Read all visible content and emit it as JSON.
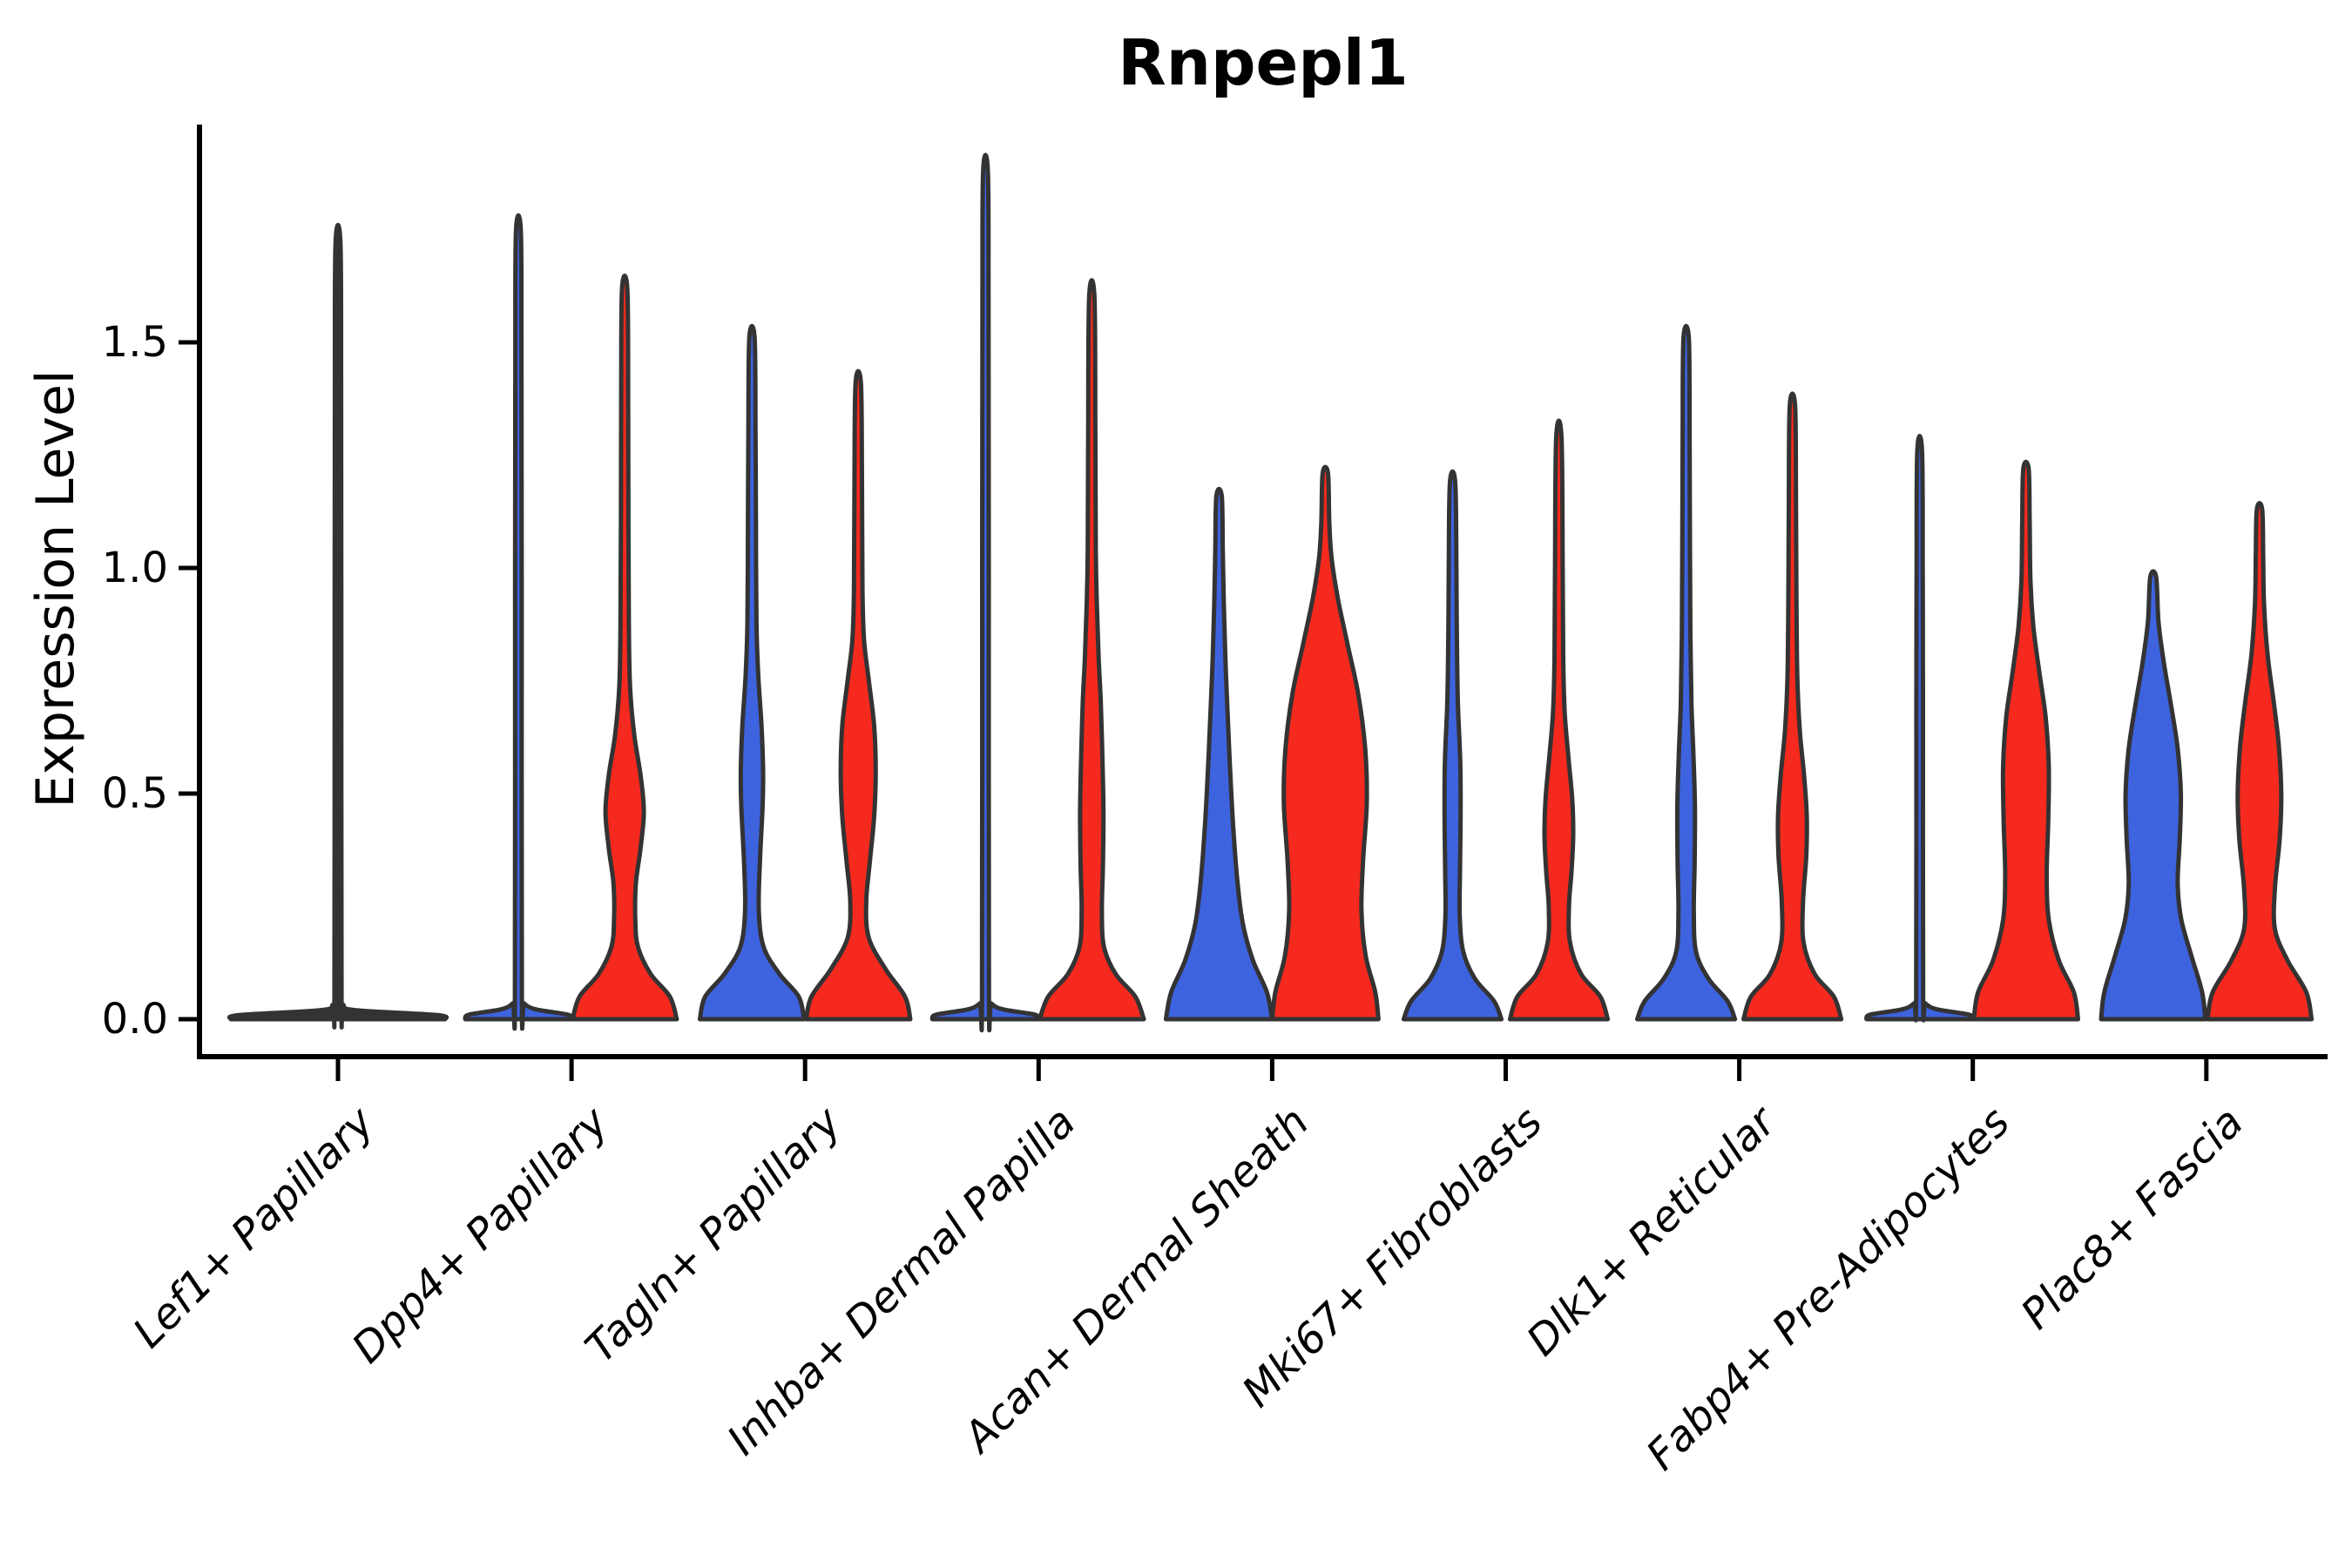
{
  "title": "Rnpepl1",
  "ylabel": "Expression Level",
  "colors": {
    "blue": "#3E63DF",
    "red": "#F6291E",
    "outline": "#333333",
    "axis": "#000000",
    "text": "#000000",
    "background": "#ffffff"
  },
  "axes": {
    "y_tick_labels": [
      "0.0",
      "0.5",
      "1.0",
      "1.5"
    ],
    "x_tick_labels": [
      "Lef1+ Papillary",
      "Dpp4+ Papillary",
      "Tagln+ Papillary",
      "Inhba+ Dermal Papilla",
      "Acan+ Dermal Sheath",
      "Mki67+ Fibroblasts",
      "Dlk1+ Reticular",
      "Fabp4+ Pre-Adipocytes",
      "Plac8+ Fascia"
    ]
  },
  "chart_data": {
    "type": "violin",
    "title": "Rnpepl1",
    "xlabel": "",
    "ylabel": "Expression Level",
    "yticks": [
      0.0,
      0.5,
      1.0,
      1.5
    ],
    "ylim": [
      -0.09,
      1.98
    ],
    "grid": false,
    "legend": "none shown (split violins: blue = condition 1, red = condition 2)",
    "categories": [
      "Lef1+ Papillary",
      "Dpp4+ Papillary",
      "Tagln+ Papillary",
      "Inhba+ Dermal Papilla",
      "Acan+ Dermal Sheath",
      "Mki67+ Fibroblasts",
      "Dlk1+ Reticular",
      "Fabp4+ Pre-Adipocytes",
      "Plac8+ Fascia"
    ],
    "violins": [
      {
        "category_index": 0,
        "category": "Lef1+ Papillary",
        "side": "full",
        "group": "unknown",
        "color": null,
        "collapsed": true,
        "max_expression": 1.72,
        "width_profile": [
          [
            0,
            1.0
          ],
          [
            0.009,
            0.93
          ],
          [
            0.02,
            0.16
          ],
          [
            0.032,
            0.05
          ],
          [
            0.05,
            0.033
          ],
          [
            0.9,
            0.031
          ],
          [
            1.4,
            0.029
          ],
          [
            1.72,
            0.023
          ]
        ]
      },
      {
        "category_index": 1,
        "category": "Dpp4+ Papillary",
        "side": "left",
        "group": "blue",
        "color": "blue",
        "collapsed": true,
        "max_expression": 1.75,
        "width_profile": [
          [
            0,
            1.0
          ],
          [
            0.01,
            0.93
          ],
          [
            0.022,
            0.32
          ],
          [
            0.035,
            0.11
          ],
          [
            0.05,
            0.066
          ],
          [
            0.95,
            0.062
          ],
          [
            1.5,
            0.058
          ],
          [
            1.75,
            0.045
          ]
        ]
      },
      {
        "category_index": 1,
        "category": "Dpp4+ Papillary",
        "side": "right",
        "group": "red",
        "color": "red",
        "collapsed": false,
        "max_expression": 1.62,
        "width_profile": [
          [
            0,
            0.98
          ],
          [
            0.05,
            0.85
          ],
          [
            0.1,
            0.49
          ],
          [
            0.16,
            0.25
          ],
          [
            0.22,
            0.2
          ],
          [
            0.3,
            0.21
          ],
          [
            0.38,
            0.3
          ],
          [
            0.46,
            0.36
          ],
          [
            0.54,
            0.3
          ],
          [
            0.63,
            0.18
          ],
          [
            0.74,
            0.1
          ],
          [
            0.88,
            0.078
          ],
          [
            1.1,
            0.07
          ],
          [
            1.4,
            0.065
          ],
          [
            1.62,
            0.05
          ]
        ]
      },
      {
        "category_index": 2,
        "category": "Tagln+ Papillary",
        "side": "left",
        "group": "blue",
        "color": "blue",
        "collapsed": false,
        "max_expression": 1.51,
        "width_profile": [
          [
            0,
            0.98
          ],
          [
            0.05,
            0.88
          ],
          [
            0.1,
            0.52
          ],
          [
            0.16,
            0.22
          ],
          [
            0.24,
            0.13
          ],
          [
            0.35,
            0.15
          ],
          [
            0.47,
            0.2
          ],
          [
            0.55,
            0.21
          ],
          [
            0.65,
            0.18
          ],
          [
            0.76,
            0.12
          ],
          [
            0.88,
            0.085
          ],
          [
            1.1,
            0.075
          ],
          [
            1.3,
            0.068
          ],
          [
            1.51,
            0.05
          ]
        ]
      },
      {
        "category_index": 2,
        "category": "Tagln+ Papillary",
        "side": "right",
        "group": "red",
        "color": "red",
        "collapsed": false,
        "max_expression": 1.41,
        "width_profile": [
          [
            0,
            0.98
          ],
          [
            0.05,
            0.88
          ],
          [
            0.11,
            0.52
          ],
          [
            0.18,
            0.2
          ],
          [
            0.26,
            0.15
          ],
          [
            0.35,
            0.22
          ],
          [
            0.45,
            0.3
          ],
          [
            0.55,
            0.33
          ],
          [
            0.65,
            0.3
          ],
          [
            0.75,
            0.2
          ],
          [
            0.84,
            0.11
          ],
          [
            0.95,
            0.08
          ],
          [
            1.2,
            0.07
          ],
          [
            1.41,
            0.05
          ]
        ]
      },
      {
        "category_index": 3,
        "category": "Inhba+ Dermal Papilla",
        "side": "left",
        "group": "blue",
        "color": "blue",
        "collapsed": true,
        "max_expression": 1.88,
        "width_profile": [
          [
            0,
            1.0
          ],
          [
            0.01,
            0.93
          ],
          [
            0.022,
            0.32
          ],
          [
            0.035,
            0.11
          ],
          [
            0.05,
            0.066
          ],
          [
            1.0,
            0.062
          ],
          [
            1.6,
            0.058
          ],
          [
            1.88,
            0.045
          ]
        ]
      },
      {
        "category_index": 3,
        "category": "Inhba+ Dermal Papilla",
        "side": "right",
        "group": "red",
        "color": "red",
        "collapsed": false,
        "max_expression": 1.6,
        "width_profile": [
          [
            0,
            0.98
          ],
          [
            0.05,
            0.82
          ],
          [
            0.1,
            0.45
          ],
          [
            0.16,
            0.23
          ],
          [
            0.24,
            0.19
          ],
          [
            0.34,
            0.21
          ],
          [
            0.46,
            0.22
          ],
          [
            0.58,
            0.2
          ],
          [
            0.7,
            0.17
          ],
          [
            0.8,
            0.13
          ],
          [
            0.92,
            0.095
          ],
          [
            1.05,
            0.075
          ],
          [
            1.3,
            0.068
          ],
          [
            1.6,
            0.05
          ]
        ]
      },
      {
        "category_index": 4,
        "category": "Acan+ Dermal Sheath",
        "side": "left",
        "group": "blue",
        "color": "blue",
        "collapsed": false,
        "max_expression": 1.16,
        "width_profile": [
          [
            0,
            1.0
          ],
          [
            0.06,
            0.9
          ],
          [
            0.13,
            0.64
          ],
          [
            0.21,
            0.45
          ],
          [
            0.3,
            0.35
          ],
          [
            0.42,
            0.27
          ],
          [
            0.55,
            0.21
          ],
          [
            0.68,
            0.16
          ],
          [
            0.8,
            0.12
          ],
          [
            0.92,
            0.09
          ],
          [
            1.04,
            0.07
          ],
          [
            1.16,
            0.05
          ]
        ]
      },
      {
        "category_index": 4,
        "category": "Acan+ Dermal Sheath",
        "side": "right",
        "group": "red",
        "color": "red",
        "collapsed": false,
        "max_expression": 1.21,
        "width_profile": [
          [
            0,
            1.0
          ],
          [
            0.06,
            0.94
          ],
          [
            0.14,
            0.76
          ],
          [
            0.24,
            0.68
          ],
          [
            0.35,
            0.71
          ],
          [
            0.48,
            0.78
          ],
          [
            0.6,
            0.75
          ],
          [
            0.72,
            0.62
          ],
          [
            0.83,
            0.42
          ],
          [
            0.93,
            0.24
          ],
          [
            1.02,
            0.12
          ],
          [
            1.1,
            0.075
          ],
          [
            1.21,
            0.05
          ]
        ]
      },
      {
        "category_index": 5,
        "category": "Mki67+ Fibroblasts",
        "side": "left",
        "group": "blue",
        "color": "blue",
        "collapsed": false,
        "max_expression": 1.19,
        "width_profile": [
          [
            0,
            0.92
          ],
          [
            0.04,
            0.78
          ],
          [
            0.09,
            0.42
          ],
          [
            0.15,
            0.2
          ],
          [
            0.23,
            0.135
          ],
          [
            0.33,
            0.14
          ],
          [
            0.45,
            0.15
          ],
          [
            0.57,
            0.145
          ],
          [
            0.7,
            0.1
          ],
          [
            0.85,
            0.08
          ],
          [
            1.0,
            0.072
          ],
          [
            1.19,
            0.05
          ]
        ]
      },
      {
        "category_index": 5,
        "category": "Mki67+ Fibroblasts",
        "side": "right",
        "group": "red",
        "color": "red",
        "collapsed": false,
        "max_expression": 1.29,
        "width_profile": [
          [
            0,
            0.92
          ],
          [
            0.05,
            0.78
          ],
          [
            0.1,
            0.42
          ],
          [
            0.17,
            0.21
          ],
          [
            0.25,
            0.19
          ],
          [
            0.33,
            0.24
          ],
          [
            0.41,
            0.27
          ],
          [
            0.49,
            0.25
          ],
          [
            0.58,
            0.18
          ],
          [
            0.68,
            0.11
          ],
          [
            0.8,
            0.082
          ],
          [
            1.0,
            0.072
          ],
          [
            1.29,
            0.05
          ]
        ]
      },
      {
        "category_index": 6,
        "category": "Dlk1+ Reticular",
        "side": "left",
        "group": "blue",
        "color": "blue",
        "collapsed": false,
        "max_expression": 1.51,
        "width_profile": [
          [
            0,
            0.92
          ],
          [
            0.04,
            0.78
          ],
          [
            0.09,
            0.42
          ],
          [
            0.15,
            0.185
          ],
          [
            0.24,
            0.145
          ],
          [
            0.35,
            0.16
          ],
          [
            0.47,
            0.165
          ],
          [
            0.58,
            0.14
          ],
          [
            0.7,
            0.1
          ],
          [
            0.85,
            0.08
          ],
          [
            1.05,
            0.072
          ],
          [
            1.3,
            0.066
          ],
          [
            1.51,
            0.05
          ]
        ]
      },
      {
        "category_index": 6,
        "category": "Dlk1+ Reticular",
        "side": "right",
        "group": "red",
        "color": "red",
        "collapsed": false,
        "max_expression": 1.36,
        "width_profile": [
          [
            0,
            0.92
          ],
          [
            0.05,
            0.78
          ],
          [
            0.1,
            0.42
          ],
          [
            0.17,
            0.21
          ],
          [
            0.26,
            0.2
          ],
          [
            0.36,
            0.26
          ],
          [
            0.45,
            0.27
          ],
          [
            0.54,
            0.22
          ],
          [
            0.64,
            0.14
          ],
          [
            0.76,
            0.092
          ],
          [
            0.95,
            0.075
          ],
          [
            1.15,
            0.068
          ],
          [
            1.36,
            0.05
          ]
        ]
      },
      {
        "category_index": 7,
        "category": "Fabp4+ Pre-Adipocytes",
        "side": "left",
        "group": "blue",
        "color": "blue",
        "collapsed": true,
        "max_expression": 1.26,
        "width_profile": [
          [
            0,
            1.0
          ],
          [
            0.01,
            0.93
          ],
          [
            0.022,
            0.32
          ],
          [
            0.035,
            0.11
          ],
          [
            0.05,
            0.066
          ],
          [
            0.7,
            0.062
          ],
          [
            1.0,
            0.058
          ],
          [
            1.26,
            0.045
          ]
        ]
      },
      {
        "category_index": 7,
        "category": "Fabp4+ Pre-Adipocytes",
        "side": "right",
        "group": "red",
        "color": "red",
        "collapsed": false,
        "max_expression": 1.22,
        "width_profile": [
          [
            0,
            0.98
          ],
          [
            0.06,
            0.9
          ],
          [
            0.13,
            0.62
          ],
          [
            0.22,
            0.43
          ],
          [
            0.32,
            0.39
          ],
          [
            0.44,
            0.42
          ],
          [
            0.56,
            0.43
          ],
          [
            0.67,
            0.37
          ],
          [
            0.77,
            0.25
          ],
          [
            0.87,
            0.14
          ],
          [
            0.97,
            0.085
          ],
          [
            1.1,
            0.07
          ],
          [
            1.22,
            0.05
          ]
        ]
      },
      {
        "category_index": 8,
        "category": "Plac8+ Fascia",
        "side": "left",
        "group": "blue",
        "color": "blue",
        "collapsed": false,
        "max_expression": 0.98,
        "width_profile": [
          [
            0,
            0.98
          ],
          [
            0.06,
            0.92
          ],
          [
            0.14,
            0.72
          ],
          [
            0.22,
            0.53
          ],
          [
            0.3,
            0.46
          ],
          [
            0.4,
            0.5
          ],
          [
            0.5,
            0.52
          ],
          [
            0.6,
            0.46
          ],
          [
            0.7,
            0.33
          ],
          [
            0.79,
            0.2
          ],
          [
            0.88,
            0.1
          ],
          [
            0.98,
            0.055
          ]
        ]
      },
      {
        "category_index": 8,
        "category": "Plac8+ Fascia",
        "side": "right",
        "group": "red",
        "color": "red",
        "collapsed": false,
        "max_expression": 1.13,
        "width_profile": [
          [
            0,
            0.98
          ],
          [
            0.06,
            0.88
          ],
          [
            0.13,
            0.53
          ],
          [
            0.2,
            0.29
          ],
          [
            0.29,
            0.29
          ],
          [
            0.4,
            0.38
          ],
          [
            0.5,
            0.41
          ],
          [
            0.61,
            0.36
          ],
          [
            0.71,
            0.26
          ],
          [
            0.81,
            0.15
          ],
          [
            0.92,
            0.085
          ],
          [
            1.02,
            0.07
          ],
          [
            1.13,
            0.05
          ]
        ]
      }
    ]
  }
}
